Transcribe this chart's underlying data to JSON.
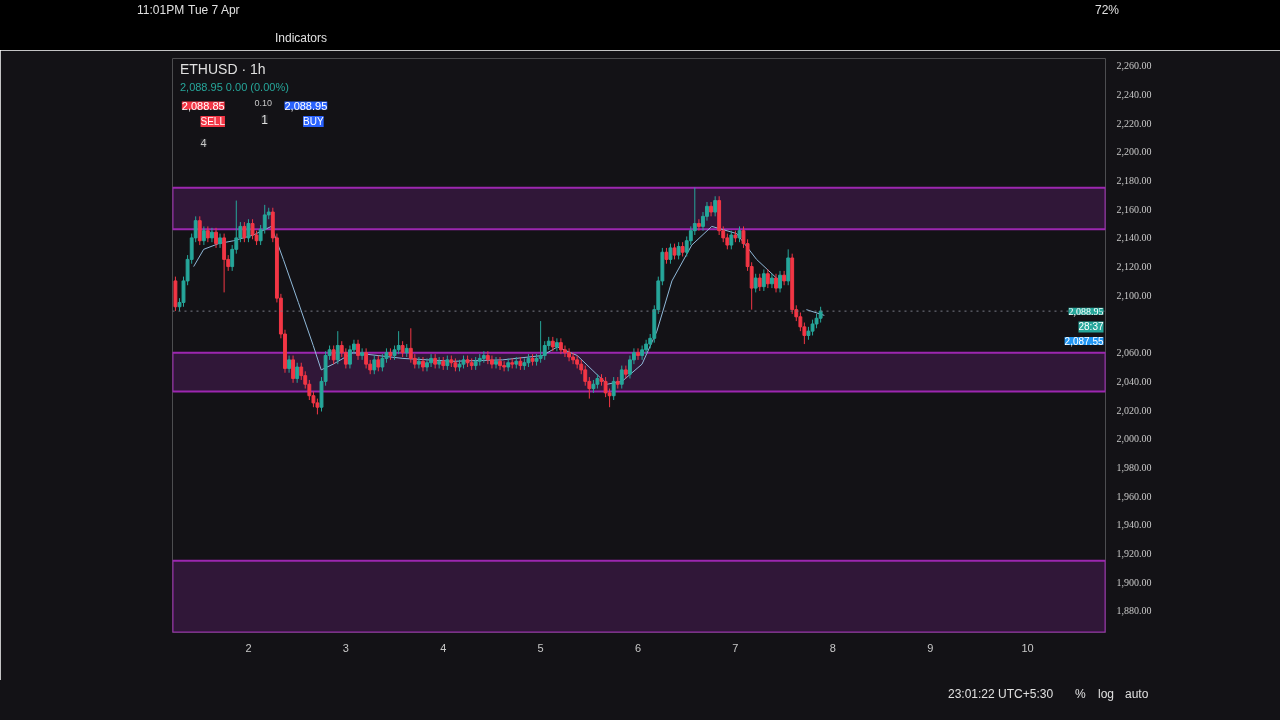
{
  "chart_data": {
    "type": "candlestick",
    "title": "ETHUSD · 1h",
    "subtitle": "2,088.95 0.00 (0.00%)",
    "x": [
      1.25,
      1.292,
      1.333,
      1.375,
      1.417,
      1.458,
      1.5,
      1.542,
      1.583,
      1.625,
      1.667,
      1.708,
      1.75,
      1.792,
      1.833,
      1.875,
      1.917,
      1.958,
      2.0,
      2.042,
      2.083,
      2.125,
      2.167,
      2.208,
      2.25,
      2.292,
      2.333,
      2.375,
      2.417,
      2.458,
      2.5,
      2.542,
      2.583,
      2.625,
      2.667,
      2.708,
      2.75,
      2.792,
      2.833,
      2.875,
      2.917,
      2.958,
      3.0,
      3.042,
      3.083,
      3.125,
      3.167,
      3.208,
      3.25,
      3.292,
      3.333,
      3.375,
      3.417,
      3.458,
      3.5,
      3.542,
      3.583,
      3.625,
      3.667,
      3.708,
      3.75,
      3.792,
      3.833,
      3.875,
      3.917,
      3.958,
      4.0,
      4.042,
      4.083,
      4.125,
      4.167,
      4.208,
      4.25,
      4.292,
      4.333,
      4.375,
      4.417,
      4.458,
      4.5,
      4.542,
      4.583,
      4.625,
      4.667,
      4.708,
      4.75,
      4.792,
      4.833,
      4.875,
      4.917,
      4.958,
      5.0,
      5.042,
      5.083,
      5.125,
      5.167,
      5.208,
      5.25,
      5.292,
      5.333,
      5.375,
      5.417,
      5.458,
      5.5,
      5.542,
      5.583,
      5.625,
      5.667,
      5.708,
      5.75,
      5.792,
      5.833,
      5.875,
      5.917,
      5.958,
      6.0,
      6.042,
      6.083,
      6.125,
      6.167,
      6.208,
      6.25,
      6.292,
      6.333,
      6.375,
      6.417,
      6.458,
      6.5,
      6.542,
      6.583,
      6.625,
      6.667,
      6.708,
      6.75,
      6.792,
      6.833,
      6.875,
      6.917,
      6.958,
      7.0,
      7.042,
      7.083,
      7.125,
      7.167,
      7.208,
      7.25,
      7.292,
      7.333,
      7.375,
      7.417,
      7.458,
      7.5,
      7.542,
      7.583,
      7.625,
      7.667,
      7.708,
      7.75,
      7.792,
      7.833,
      7.875
    ],
    "ohlc": [
      [
        2110,
        2113,
        2089,
        2092
      ],
      [
        2092,
        2098,
        2089,
        2095
      ],
      [
        2095,
        2113,
        2092,
        2110
      ],
      [
        2110,
        2128,
        2107,
        2125
      ],
      [
        2125,
        2143,
        2122,
        2140
      ],
      [
        2140,
        2155,
        2137,
        2152
      ],
      [
        2152,
        2155,
        2135,
        2138
      ],
      [
        2138,
        2148,
        2135,
        2145
      ],
      [
        2145,
        2148,
        2137,
        2140
      ],
      [
        2140,
        2147,
        2137,
        2144
      ],
      [
        2144,
        2147,
        2133,
        2136
      ],
      [
        2136,
        2143,
        2133,
        2140
      ],
      [
        2140,
        2143,
        2102,
        2125
      ],
      [
        2125,
        2128,
        2117,
        2120
      ],
      [
        2120,
        2135,
        2117,
        2132
      ],
      [
        2132,
        2166,
        2129,
        2140
      ],
      [
        2140,
        2151,
        2137,
        2148
      ],
      [
        2148,
        2151,
        2137,
        2140
      ],
      [
        2140,
        2153,
        2137,
        2150
      ],
      [
        2150,
        2153,
        2139,
        2142
      ],
      [
        2142,
        2145,
        2135,
        2138
      ],
      [
        2138,
        2149,
        2135,
        2146
      ],
      [
        2146,
        2163,
        2143,
        2156
      ],
      [
        2156,
        2161,
        2153,
        2158
      ],
      [
        2158,
        2161,
        2137,
        2140
      ],
      [
        2140,
        2143,
        2095,
        2098
      ],
      [
        2098,
        2101,
        2070,
        2073
      ],
      [
        2073,
        2076,
        2046,
        2049
      ],
      [
        2049,
        2058,
        2046,
        2055
      ],
      [
        2055,
        2058,
        2039,
        2042
      ],
      [
        2042,
        2053,
        2039,
        2050
      ],
      [
        2050,
        2053,
        2041,
        2044
      ],
      [
        2044,
        2047,
        2035,
        2038
      ],
      [
        2038,
        2041,
        2027,
        2030
      ],
      [
        2030,
        2033,
        2022,
        2025
      ],
      [
        2025,
        2028,
        2017,
        2022
      ],
      [
        2022,
        2043,
        2019,
        2040
      ],
      [
        2040,
        2061,
        2037,
        2058
      ],
      [
        2058,
        2065,
        2055,
        2062
      ],
      [
        2062,
        2065,
        2052,
        2055
      ],
      [
        2055,
        2075,
        2052,
        2065
      ],
      [
        2065,
        2068,
        2057,
        2060
      ],
      [
        2060,
        2063,
        2049,
        2052
      ],
      [
        2052,
        2065,
        2049,
        2062
      ],
      [
        2062,
        2069,
        2059,
        2066
      ],
      [
        2066,
        2069,
        2055,
        2058
      ],
      [
        2058,
        2063,
        2055,
        2060
      ],
      [
        2060,
        2063,
        2049,
        2052
      ],
      [
        2052,
        2055,
        2045,
        2048
      ],
      [
        2048,
        2058,
        2045,
        2055
      ],
      [
        2055,
        2058,
        2047,
        2050
      ],
      [
        2050,
        2059,
        2047,
        2056
      ],
      [
        2056,
        2063,
        2053,
        2060
      ],
      [
        2060,
        2063,
        2055,
        2058
      ],
      [
        2058,
        2065,
        2055,
        2062
      ],
      [
        2062,
        2075,
        2059,
        2065
      ],
      [
        2065,
        2068,
        2057,
        2060
      ],
      [
        2060,
        2066,
        2057,
        2063
      ],
      [
        2063,
        2077,
        2053,
        2056
      ],
      [
        2056,
        2059,
        2049,
        2052
      ],
      [
        2052,
        2057,
        2049,
        2054
      ],
      [
        2054,
        2057,
        2047,
        2050
      ],
      [
        2050,
        2056,
        2047,
        2053
      ],
      [
        2053,
        2059,
        2050,
        2056
      ],
      [
        2056,
        2059,
        2049,
        2052
      ],
      [
        2052,
        2057,
        2049,
        2054
      ],
      [
        2054,
        2057,
        2048,
        2051
      ],
      [
        2051,
        2058,
        2048,
        2055
      ],
      [
        2055,
        2058,
        2050,
        2053
      ],
      [
        2053,
        2056,
        2047,
        2050
      ],
      [
        2050,
        2055,
        2047,
        2052
      ],
      [
        2052,
        2058,
        2049,
        2055
      ],
      [
        2055,
        2058,
        2050,
        2053
      ],
      [
        2053,
        2056,
        2048,
        2051
      ],
      [
        2051,
        2057,
        2048,
        2054
      ],
      [
        2054,
        2059,
        2051,
        2056
      ],
      [
        2056,
        2061,
        2053,
        2058
      ],
      [
        2058,
        2061,
        2052,
        2055
      ],
      [
        2055,
        2058,
        2049,
        2052
      ],
      [
        2052,
        2057,
        2049,
        2054
      ],
      [
        2054,
        2057,
        2048,
        2051
      ],
      [
        2051,
        2054,
        2047,
        2050
      ],
      [
        2050,
        2056,
        2047,
        2053
      ],
      [
        2053,
        2056,
        2049,
        2052
      ],
      [
        2052,
        2057,
        2049,
        2054
      ],
      [
        2054,
        2057,
        2048,
        2051
      ],
      [
        2051,
        2056,
        2048,
        2053
      ],
      [
        2053,
        2059,
        2050,
        2056
      ],
      [
        2056,
        2059,
        2051,
        2054
      ],
      [
        2054,
        2059,
        2051,
        2056
      ],
      [
        2056,
        2082,
        2053,
        2058
      ],
      [
        2058,
        2068,
        2055,
        2065
      ],
      [
        2065,
        2071,
        2062,
        2068
      ],
      [
        2068,
        2071,
        2061,
        2064
      ],
      [
        2064,
        2070,
        2061,
        2067
      ],
      [
        2067,
        2070,
        2059,
        2062
      ],
      [
        2062,
        2065,
        2057,
        2060
      ],
      [
        2060,
        2063,
        2054,
        2057
      ],
      [
        2057,
        2060,
        2052,
        2055
      ],
      [
        2055,
        2058,
        2049,
        2052
      ],
      [
        2052,
        2055,
        2045,
        2048
      ],
      [
        2048,
        2051,
        2037,
        2040
      ],
      [
        2040,
        2043,
        2028,
        2035
      ],
      [
        2035,
        2041,
        2032,
        2038
      ],
      [
        2038,
        2045,
        2035,
        2042
      ],
      [
        2042,
        2045,
        2037,
        2040
      ],
      [
        2040,
        2043,
        2029,
        2032
      ],
      [
        2032,
        2035,
        2022,
        2030
      ],
      [
        2030,
        2043,
        2027,
        2040
      ],
      [
        2040,
        2043,
        2035,
        2038
      ],
      [
        2038,
        2051,
        2035,
        2048
      ],
      [
        2048,
        2051,
        2042,
        2045
      ],
      [
        2045,
        2058,
        2042,
        2055
      ],
      [
        2055,
        2063,
        2052,
        2060
      ],
      [
        2060,
        2063,
        2055,
        2058
      ],
      [
        2058,
        2065,
        2055,
        2062
      ],
      [
        2062,
        2069,
        2059,
        2066
      ],
      [
        2066,
        2073,
        2063,
        2070
      ],
      [
        2070,
        2093,
        2067,
        2090
      ],
      [
        2090,
        2113,
        2087,
        2110
      ],
      [
        2110,
        2133,
        2107,
        2130
      ],
      [
        2130,
        2133,
        2122,
        2125
      ],
      [
        2125,
        2136,
        2122,
        2133
      ],
      [
        2133,
        2136,
        2125,
        2128
      ],
      [
        2128,
        2137,
        2125,
        2134
      ],
      [
        2134,
        2137,
        2127,
        2130
      ],
      [
        2130,
        2141,
        2127,
        2138
      ],
      [
        2138,
        2148,
        2135,
        2145
      ],
      [
        2145,
        2175,
        2142,
        2150
      ],
      [
        2150,
        2153,
        2145,
        2148
      ],
      [
        2148,
        2158,
        2145,
        2155
      ],
      [
        2155,
        2165,
        2152,
        2162
      ],
      [
        2162,
        2165,
        2155,
        2158
      ],
      [
        2158,
        2169,
        2155,
        2166
      ],
      [
        2166,
        2169,
        2142,
        2145
      ],
      [
        2145,
        2148,
        2137,
        2140
      ],
      [
        2140,
        2143,
        2132,
        2135
      ],
      [
        2135,
        2145,
        2132,
        2142
      ],
      [
        2142,
        2145,
        2137,
        2140
      ],
      [
        2140,
        2148,
        2137,
        2145
      ],
      [
        2145,
        2148,
        2133,
        2136
      ],
      [
        2136,
        2139,
        2117,
        2120
      ],
      [
        2120,
        2123,
        2090,
        2105
      ],
      [
        2105,
        2115,
        2102,
        2112
      ],
      [
        2112,
        2115,
        2103,
        2106
      ],
      [
        2106,
        2118,
        2103,
        2115
      ],
      [
        2115,
        2118,
        2105,
        2108
      ],
      [
        2108,
        2115,
        2105,
        2112
      ],
      [
        2112,
        2115,
        2102,
        2105
      ],
      [
        2105,
        2117,
        2102,
        2114
      ],
      [
        2114,
        2117,
        2107,
        2110
      ],
      [
        2110,
        2132,
        2107,
        2126
      ],
      [
        2126,
        2129,
        2087,
        2090
      ],
      [
        2090,
        2093,
        2082,
        2085
      ],
      [
        2085,
        2088,
        2075,
        2078
      ],
      [
        2078,
        2081,
        2066,
        2072
      ],
      [
        2072,
        2078,
        2069,
        2075
      ],
      [
        2075,
        2083,
        2072,
        2080
      ],
      [
        2080,
        2087,
        2077,
        2084
      ],
      [
        2084,
        2092,
        2081,
        2089
      ]
    ],
    "series": [
      {
        "type": "line",
        "color": "#8fb8d8",
        "x": [
          1.437,
          1.54,
          1.693,
          1.847,
          2.051,
          2.235,
          2.358,
          2.512,
          2.665,
          2.747,
          2.87,
          3.074,
          3.586,
          4.097,
          4.609,
          5.018,
          5.172,
          5.376,
          5.529,
          5.683,
          5.836,
          6.041,
          6.194,
          6.348,
          6.552,
          6.757,
          7.013,
          7.217,
          7.422,
          7.575,
          7.729,
          7.913
        ],
        "values": [
          2120,
          2132,
          2136,
          2138,
          2142,
          2148,
          2125,
          2095,
          2065,
          2048,
          2052,
          2060,
          2056,
          2054,
          2055,
          2058,
          2064,
          2058,
          2048,
          2038,
          2040,
          2052,
          2075,
          2110,
          2135,
          2148,
          2143,
          2125,
          2112,
          null,
          2090,
          2086
        ]
      }
    ],
    "xlim": [
      1.22,
      10.8
    ],
    "ylim": [
      1865,
      2265
    ],
    "xticks": [
      2,
      3,
      4,
      5,
      6,
      7,
      8,
      9,
      10
    ],
    "yticks": [
      {
        "value": 1880,
        "label": "1,880.00"
      },
      {
        "value": 1900,
        "label": "1,900.00"
      },
      {
        "value": 1920,
        "label": "1,920.00"
      },
      {
        "value": 1940,
        "label": "1,940.00"
      },
      {
        "value": 1960,
        "label": "1,960.00"
      },
      {
        "value": 1980,
        "label": "1,980.00"
      },
      {
        "value": 2000,
        "label": "2,000.00"
      },
      {
        "value": 2020,
        "label": "2,020.00"
      },
      {
        "value": 2040,
        "label": "2,040.00"
      },
      {
        "value": 2060,
        "label": "2,060.00"
      },
      {
        "value": 2100,
        "label": "2,100.00"
      },
      {
        "value": 2120,
        "label": "2,120.00"
      },
      {
        "value": 2140,
        "label": "2,140.00"
      },
      {
        "value": 2160,
        "label": "2,160.00"
      },
      {
        "value": 2180,
        "label": "2,180.00"
      },
      {
        "value": 2200,
        "label": "2,200.00"
      },
      {
        "value": 2220,
        "label": "2,220.00"
      },
      {
        "value": 2240,
        "label": "2,240.00"
      },
      {
        "value": 2260,
        "label": "2,260.00"
      }
    ],
    "bands": [
      {
        "axis": "y",
        "from": 2146,
        "to": 2175,
        "color": "#9c27b0"
      },
      {
        "axis": "y",
        "from": 2033,
        "to": 2060,
        "color": "#9c27b0"
      },
      {
        "axis": "y",
        "from": 1865,
        "to": 1915,
        "color": "#9c27b0"
      }
    ],
    "ref_lines": [
      {
        "axis": "y",
        "value": 2088.95,
        "label": "2,088.95",
        "color": "#787b86",
        "line_style": "dotted"
      }
    ],
    "annotations": [
      "2,088.85",
      "SELL",
      "0.10",
      "1",
      "2,088.95",
      "BUY",
      "4",
      "28:37",
      "2,087.55",
      "23:01:22 UTC+5:30",
      "%",
      "log",
      "auto",
      "Indicators",
      "11:01PM",
      "Tue 7 Apr",
      "72%"
    ],
    "grid": false
  }
}
